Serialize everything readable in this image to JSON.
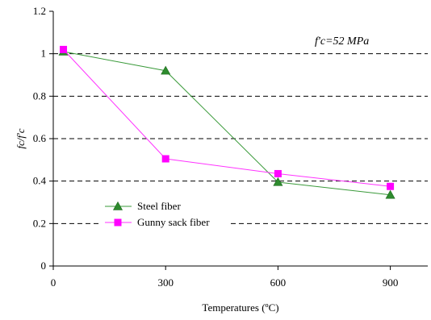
{
  "chart_data": {
    "type": "line",
    "title": "",
    "xlabel": "Temperatures (ºC)",
    "ylabel": "fc/f'c",
    "xlim": [
      0,
      1000
    ],
    "ylim": [
      0,
      1.2
    ],
    "xticks": [
      0,
      300,
      600,
      900
    ],
    "xtick_labels": [
      "0",
      "300",
      "600",
      "900"
    ],
    "yticks": [
      0,
      0.2,
      0.4,
      0.6,
      0.8,
      1,
      1.2
    ],
    "ytick_labels": [
      "0",
      "0.2",
      "0.4",
      "0.6",
      "0.8",
      "1",
      "1.2"
    ],
    "grid": "horizontal dashed",
    "legend_position": "lower-left",
    "annotation": "f'c=52 MPa",
    "series": [
      {
        "name": "Steel fiber",
        "color": "#2e8b2e",
        "line_color": "#3a9a3a",
        "marker": "triangle",
        "x": [
          27,
          300,
          600,
          900
        ],
        "y": [
          1.01,
          0.92,
          0.395,
          0.335
        ]
      },
      {
        "name": "Gunny sack fiber",
        "color": "#ff00ff",
        "line_color": "#ff33ff",
        "marker": "square",
        "x": [
          27,
          300,
          600,
          900
        ],
        "y": [
          1.02,
          0.505,
          0.435,
          0.375
        ]
      }
    ]
  }
}
